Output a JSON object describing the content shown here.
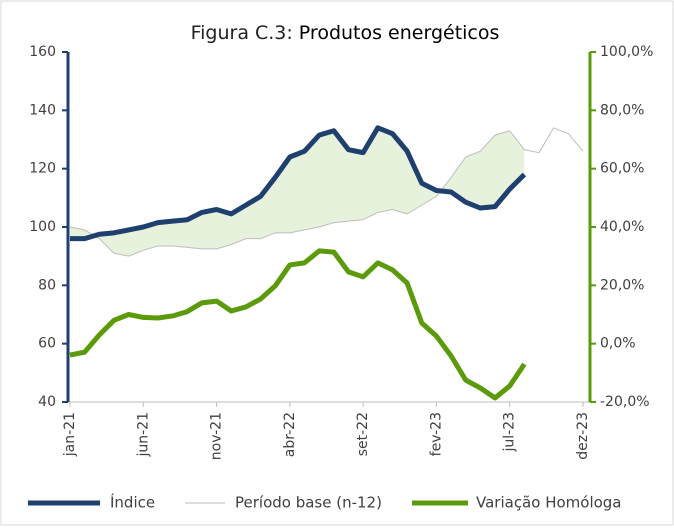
{
  "chart_data": {
    "type": "line",
    "figure_label": "Figura C.3:",
    "title": "Produtos energéticos",
    "categories": [
      "jan-21",
      null,
      null,
      null,
      null,
      "jun-21",
      null,
      null,
      null,
      null,
      "nov-21",
      null,
      null,
      null,
      null,
      "abr-22",
      null,
      null,
      null,
      null,
      "set-22",
      null,
      null,
      null,
      null,
      "fev-23",
      null,
      null,
      null,
      null,
      "jul-23",
      null,
      null,
      null,
      null,
      "dez-23"
    ],
    "series": [
      {
        "name": "Índice",
        "color": "#1f3f6e",
        "axis": "y",
        "values": [
          96,
          96,
          97.5,
          98,
          99,
          100,
          101.5,
          102,
          102.5,
          105,
          106,
          104.5,
          107.5,
          110.5,
          117,
          124,
          126,
          131.5,
          133,
          126.5,
          125.5,
          134,
          132,
          126,
          115,
          112.5,
          112,
          108.5,
          106.5,
          107,
          113,
          118,
          null,
          null,
          null,
          null
        ]
      },
      {
        "name": "Período base (n-12)",
        "color": "#bdbdbd",
        "axis": "y",
        "values": [
          100,
          99,
          96,
          91,
          90,
          92,
          93.5,
          93.5,
          93,
          92.5,
          92.5,
          94,
          96,
          96,
          98,
          98,
          99,
          100,
          101.5,
          102,
          102.5,
          105,
          106,
          104.5,
          107.5,
          110.5,
          117,
          124,
          126,
          131.5,
          133,
          126.5,
          125.5,
          134,
          132,
          126
        ]
      },
      {
        "name": "Variação Homóloga",
        "color": "#5b9a0a",
        "axis": "y2",
        "values": [
          -3.9,
          -2.9,
          3,
          8,
          10,
          9,
          8.8,
          9.5,
          11,
          14,
          14.6,
          11.2,
          12.6,
          15.3,
          19.8,
          27,
          27.7,
          31.8,
          31.4,
          24.6,
          22.9,
          27.7,
          25.3,
          20.8,
          7.1,
          2.6,
          -4.2,
          -12.5,
          -15.2,
          -18.6,
          -14.5,
          -7,
          null,
          null,
          null,
          null
        ]
      }
    ],
    "fill_color": "#e7f2dd",
    "ylim": [
      40,
      160
    ],
    "yticks": [
      40,
      60,
      80,
      100,
      120,
      140,
      160
    ],
    "y2lim": [
      -20,
      100
    ],
    "y2ticks": [
      {
        "value": -20,
        "label": "-20,0%"
      },
      {
        "value": 0,
        "label": "0,0%"
      },
      {
        "value": 20,
        "label": "20,0%"
      },
      {
        "value": 40,
        "label": "40,0%"
      },
      {
        "value": 60,
        "label": "60,0%"
      },
      {
        "value": 80,
        "label": "80,0%"
      },
      {
        "value": 100,
        "label": "100,0%"
      }
    ],
    "legend": "bottom"
  }
}
